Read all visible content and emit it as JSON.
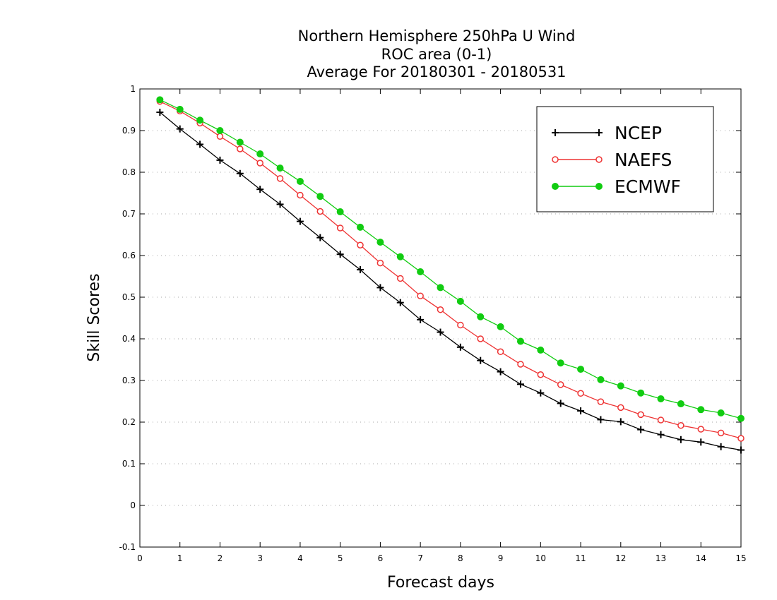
{
  "chart_data": {
    "type": "line",
    "title_lines": [
      "Northern Hemisphere 250hPa U Wind",
      "ROC area (0-1)",
      "Average For 20180301 - 20180531"
    ],
    "xlabel": "Forecast days",
    "ylabel": "Skill Scores",
    "xlim": [
      0,
      15
    ],
    "ylim": [
      -0.1,
      1
    ],
    "x_ticks": [
      0,
      1,
      2,
      3,
      4,
      5,
      6,
      7,
      8,
      9,
      10,
      11,
      12,
      13,
      14,
      15
    ],
    "x_tick_labels": [
      "0",
      "1",
      "2",
      "3",
      "4",
      "5",
      "6",
      "7",
      "8",
      "9",
      "10",
      "11",
      "12",
      "13",
      "14",
      "15"
    ],
    "y_ticks": [
      -0.1,
      0,
      0.1,
      0.2,
      0.3,
      0.4,
      0.5,
      0.6,
      0.7,
      0.8,
      0.9,
      1
    ],
    "y_tick_labels": [
      "-0.1",
      "0",
      "0.1",
      "0.2",
      "0.3",
      "0.4",
      "0.5",
      "0.6",
      "0.7",
      "0.8",
      "0.9",
      "1"
    ],
    "grid": "horizontal dotted",
    "legend_position": "top-right",
    "x": [
      0.5,
      1,
      1.5,
      2,
      2.5,
      3,
      3.5,
      4,
      4.5,
      5,
      5.5,
      6,
      6.5,
      7,
      7.5,
      8,
      8.5,
      9,
      9.5,
      10,
      10.5,
      11,
      11.5,
      12,
      12.5,
      13,
      13.5,
      14,
      14.5,
      15
    ],
    "series": [
      {
        "name": "NCEP",
        "color": "#000000",
        "marker": "plus",
        "values": [
          0.944,
          0.904,
          0.867,
          0.829,
          0.797,
          0.759,
          0.723,
          0.682,
          0.643,
          0.603,
          0.566,
          0.523,
          0.487,
          0.446,
          0.416,
          0.38,
          0.348,
          0.321,
          0.291,
          0.27,
          0.245,
          0.227,
          0.206,
          0.201,
          0.182,
          0.17,
          0.158,
          0.152,
          0.141,
          0.133
        ]
      },
      {
        "name": "NAEFS",
        "color": "#ee3333",
        "marker": "open-circle",
        "values": [
          0.97,
          0.947,
          0.918,
          0.886,
          0.856,
          0.822,
          0.785,
          0.745,
          0.706,
          0.666,
          0.625,
          0.582,
          0.545,
          0.503,
          0.47,
          0.433,
          0.4,
          0.369,
          0.339,
          0.314,
          0.29,
          0.269,
          0.249,
          0.235,
          0.218,
          0.205,
          0.192,
          0.183,
          0.174,
          0.161
        ]
      },
      {
        "name": "ECMWF",
        "color": "#11cc11",
        "marker": "filled-circle",
        "values": [
          0.974,
          0.951,
          0.925,
          0.9,
          0.872,
          0.844,
          0.81,
          0.778,
          0.742,
          0.705,
          0.668,
          0.632,
          0.597,
          0.561,
          0.523,
          0.49,
          0.453,
          0.429,
          0.394,
          0.373,
          0.342,
          0.327,
          0.302,
          0.287,
          0.27,
          0.256,
          0.244,
          0.23,
          0.222,
          0.209
        ]
      }
    ]
  }
}
